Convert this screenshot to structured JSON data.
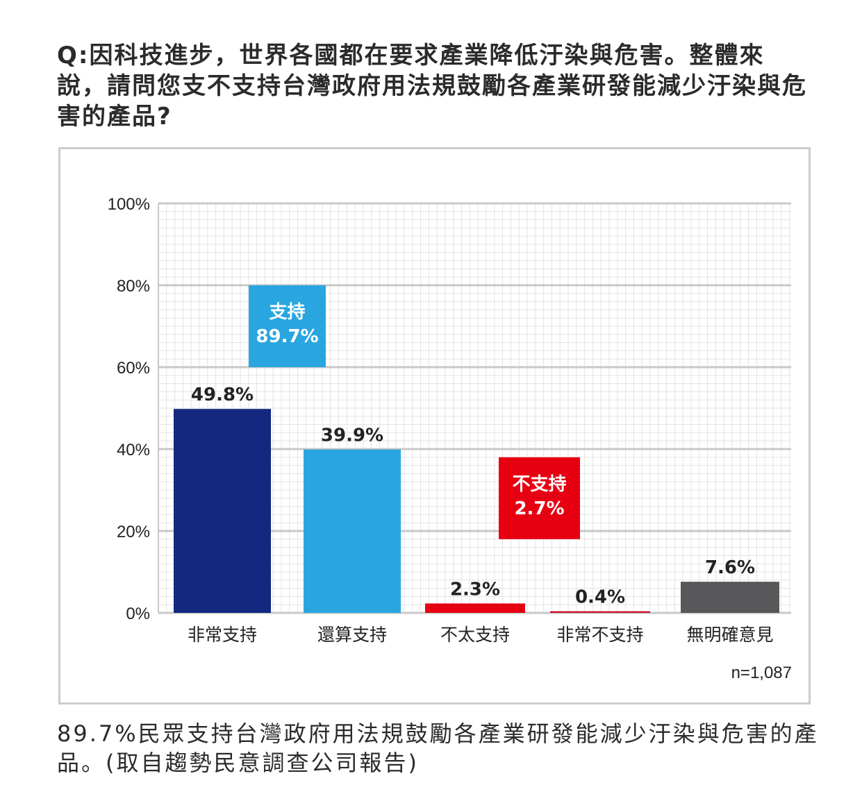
{
  "question": "Q:因科技進步，世界各國都在要求產業降低汙染與危害。整體來說，請問您支不支持台灣政府用法規鼓勵各產業研發能減少汙染與危害的產品?",
  "caption": "89.7%民眾支持台灣政府用法規鼓勵各產業研發能減少汙染與危害的產品。(取自趨勢民意調查公司報告)",
  "chart_data": {
    "type": "bar",
    "categories": [
      "非常支持",
      "還算支持",
      "不太支持",
      "非常不支持",
      "無明確意見"
    ],
    "values": [
      49.8,
      39.9,
      2.3,
      0.4,
      7.6
    ],
    "value_labels": [
      "49.8%",
      "39.9%",
      "2.3%",
      "0.4%",
      "7.6%"
    ],
    "colors": [
      "#13287e",
      "#29a6e0",
      "#e60012",
      "#c8102e",
      "#58585a"
    ],
    "ylim": [
      0,
      100
    ],
    "yticks": [
      "0%",
      "20%",
      "40%",
      "60%",
      "80%",
      "100%"
    ],
    "ytick_values": [
      0,
      20,
      40,
      60,
      80,
      100
    ],
    "grid": true,
    "sample_size": "n=1,087",
    "annotations": [
      {
        "name": "support",
        "label": "支持",
        "value": "89.7%",
        "color": "#29a6e0"
      },
      {
        "name": "oppose",
        "label": "不支持",
        "value": "2.7%",
        "color": "#e60012"
      }
    ]
  }
}
